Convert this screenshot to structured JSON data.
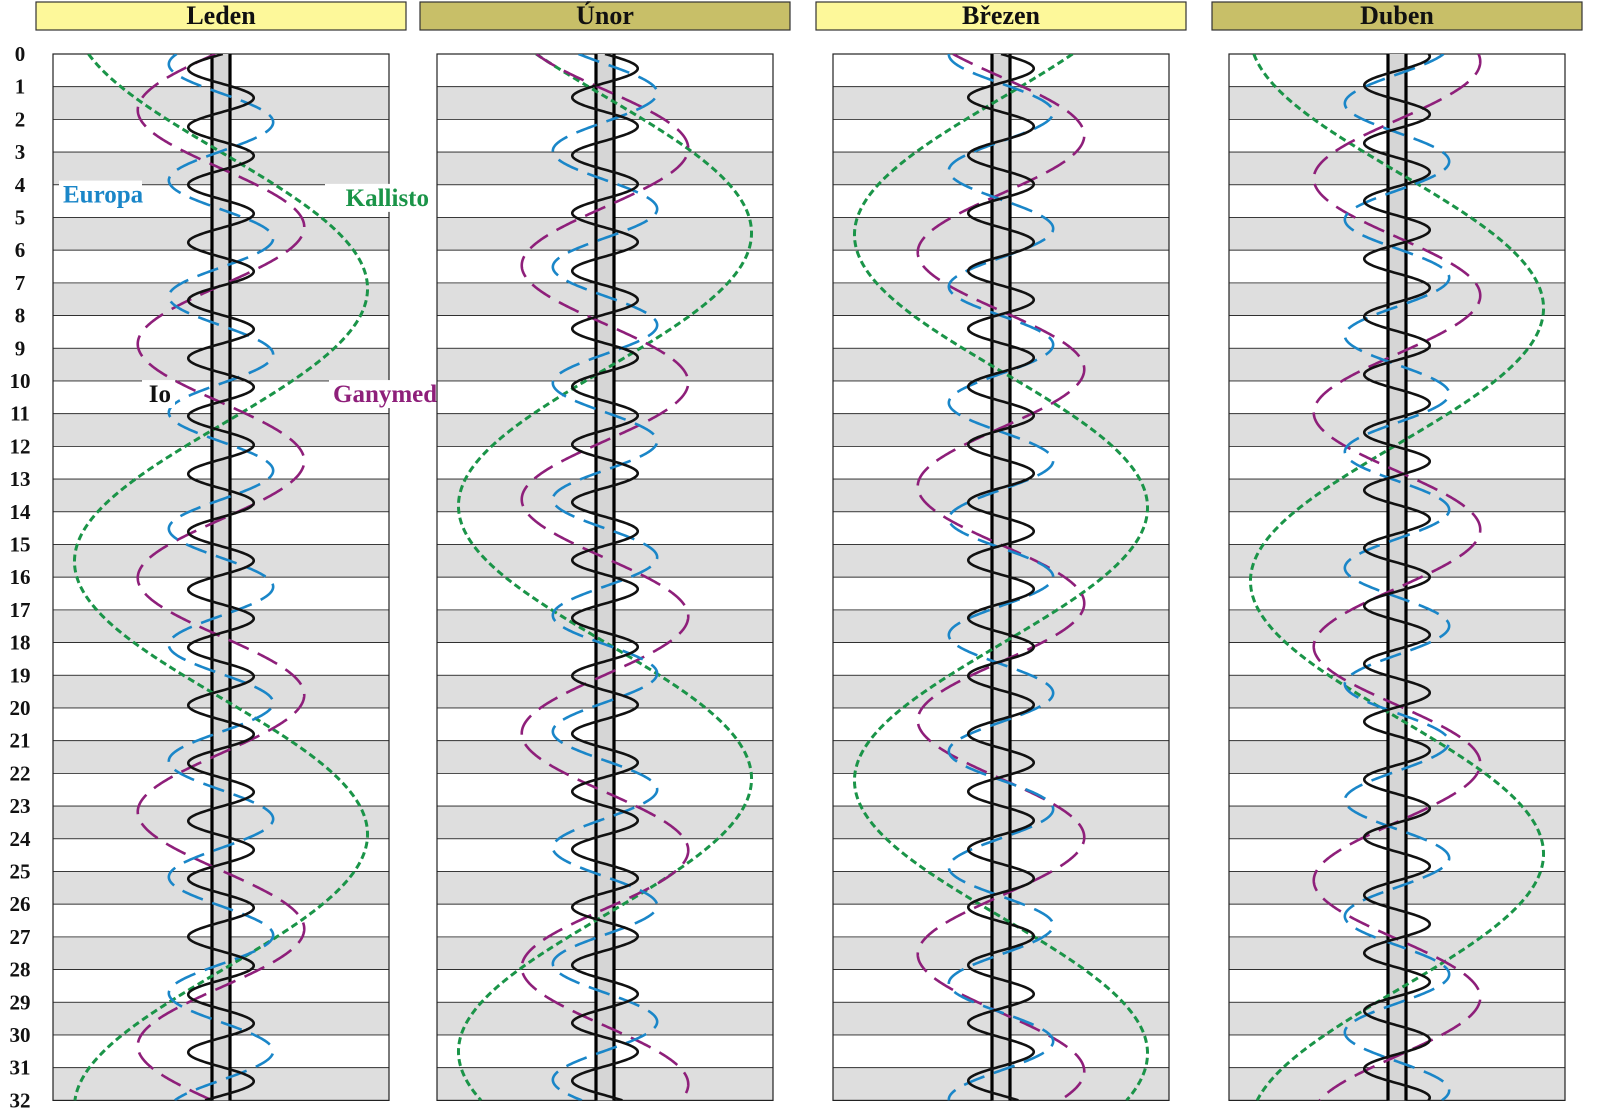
{
  "chart_data": {
    "type": "line",
    "title": "",
    "y_ticks": [
      "0",
      "1",
      "2",
      "3",
      "4",
      "5",
      "6",
      "7",
      "8",
      "9",
      "10",
      "11",
      "12",
      "13",
      "14",
      "15",
      "16",
      "17",
      "18",
      "19",
      "20",
      "21",
      "22",
      "23",
      "24",
      "25",
      "26",
      "27",
      "28",
      "29",
      "30",
      "31",
      "32"
    ],
    "ylim": [
      0,
      32
    ],
    "y_direction": "down",
    "grid": "alternating horizontal day bands (white / light grey)",
    "colors": {
      "header_fill_light": "#fdf89a",
      "header_fill_dark": "#c8bf68",
      "band": "#dedede",
      "jupiter_disk": "#d6d6d6",
      "io": "#111111",
      "europa": "#1a86c8",
      "ganymed": "#8e1f7a",
      "kallisto": "#1a9448"
    },
    "series": [
      {
        "name": "Io",
        "period_days": 1.769,
        "amplitude_jupiter_radii": 5.9,
        "color": "#111111",
        "style": "solid"
      },
      {
        "name": "Europa",
        "period_days": 3.551,
        "amplitude_jupiter_radii": 9.4,
        "color": "#1a86c8",
        "style": "long-dash"
      },
      {
        "name": "Ganymed",
        "period_days": 7.155,
        "amplitude_jupiter_radii": 15.0,
        "color": "#8e1f7a",
        "style": "long-dash"
      },
      {
        "name": "Kallisto",
        "period_days": 16.689,
        "amplitude_jupiter_radii": 26.4,
        "color": "#1a9448",
        "style": "short-dash"
      }
    ],
    "panels": [
      {
        "month": "Leden",
        "header_style": "light",
        "phase_days": {
          "Io": 0.9,
          "Europa": 1.2,
          "Ganymed": 3.5,
          "Kallisto": 3.0
        },
        "labels": [
          {
            "text": "Europa",
            "series": "Europa",
            "day": 4.3
          },
          {
            "text": "Kallisto",
            "series": "Kallisto",
            "day": 4.4
          },
          {
            "text": "Io",
            "series": "Io",
            "day": 10.4
          },
          {
            "text": "Ganymed",
            "series": "Ganymed",
            "day": 10.4
          }
        ]
      },
      {
        "month": "Únor",
        "header_style": "dark",
        "phase_days": {
          "Io": 0.0,
          "Europa": 0.3,
          "Ganymed": 1.1,
          "Kallisto": 1.3
        },
        "labels": []
      },
      {
        "month": "Březen",
        "header_style": "light",
        "phase_days": {
          "Io": 0.0,
          "Europa": 0.9,
          "Ganymed": 0.7,
          "Kallisto": 9.7
        },
        "labels": []
      },
      {
        "month": "Duben",
        "header_style": "dark",
        "phase_days": {
          "Io": 1.4,
          "Europa": 2.4,
          "Ganymed": 5.6,
          "Kallisto": 3.6
        },
        "labels": []
      }
    ]
  }
}
